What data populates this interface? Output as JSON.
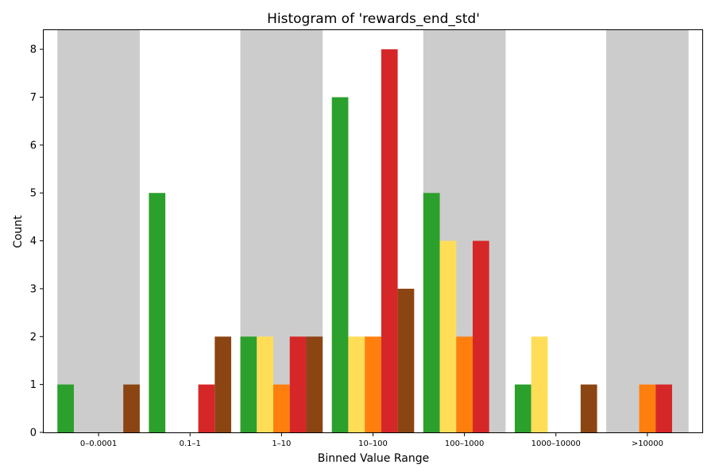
{
  "chart_data": {
    "type": "bar",
    "title": "Histogram of 'rewards_end_std'",
    "xlabel": "Binned Value Range",
    "ylabel": "Count",
    "ylim": [
      0,
      8.4
    ],
    "yticks": [
      0,
      1,
      2,
      3,
      4,
      5,
      6,
      7,
      8
    ],
    "categories": [
      "0–0.0001",
      "0.1–1",
      "1–10",
      "10–100",
      "100–1000",
      "1000–10000",
      ">10000"
    ],
    "shaded_bands": [
      0,
      2,
      4,
      6
    ],
    "band_color": "#cccccc",
    "series": [
      {
        "color": "#2ca02c",
        "values": [
          1,
          5,
          2,
          7,
          5,
          1,
          0
        ]
      },
      {
        "color": "#ffdd57",
        "values": [
          0,
          0,
          2,
          2,
          4,
          2,
          0
        ]
      },
      {
        "color": "#ff7f0e",
        "values": [
          0,
          0,
          1,
          2,
          2,
          0,
          1
        ]
      },
      {
        "color": "#d62728",
        "values": [
          0,
          1,
          2,
          8,
          4,
          0,
          1
        ]
      },
      {
        "color": "#8b4513",
        "values": [
          1,
          2,
          2,
          3,
          0,
          1,
          0
        ]
      }
    ]
  }
}
